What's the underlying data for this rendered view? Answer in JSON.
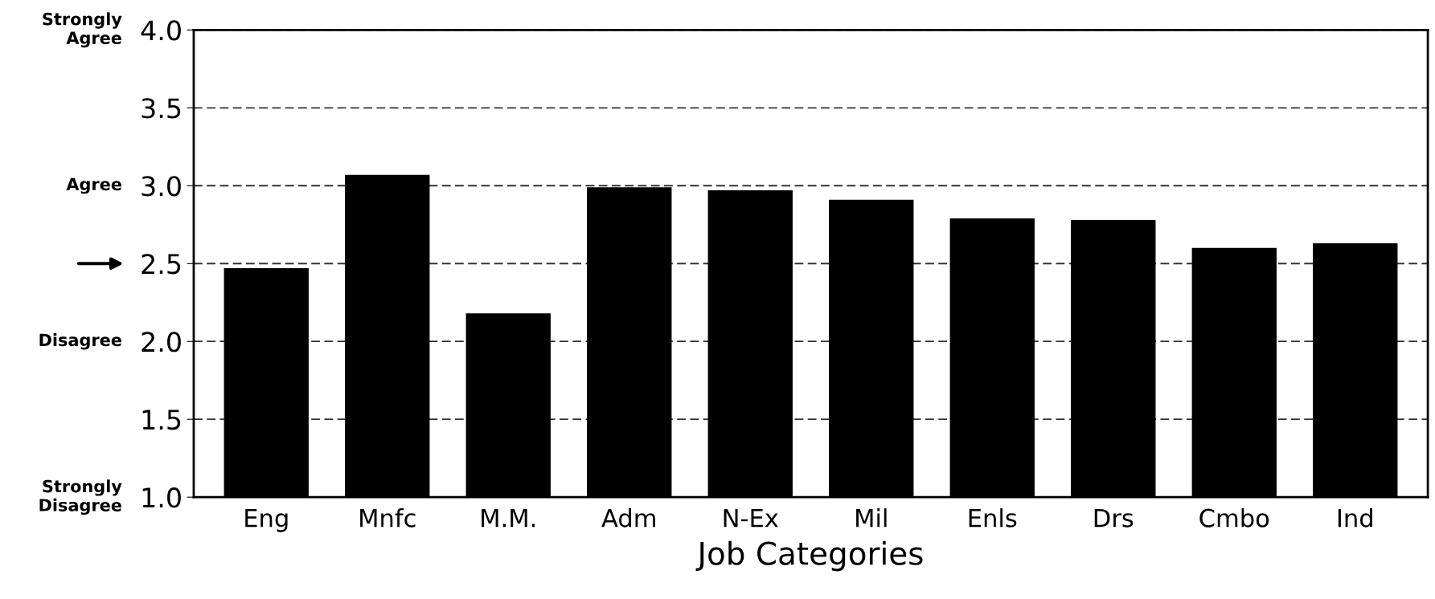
{
  "chart_data": {
    "type": "bar",
    "xlabel": "Job Categories",
    "categories": [
      "Eng",
      "Mnfc",
      "M.M.",
      "Adm",
      "N-Ex",
      "Mil",
      "Enls",
      "Drs",
      "Cmbo",
      "Ind"
    ],
    "values": [
      2.47,
      3.07,
      2.18,
      2.99,
      2.97,
      2.91,
      2.79,
      2.78,
      2.6,
      2.63
    ],
    "color": "#000000",
    "ylim": [
      1.0,
      4.0
    ],
    "yticks": [
      {
        "value": 1.0,
        "label": "1.0"
      },
      {
        "value": 1.5,
        "label": "1.5"
      },
      {
        "value": 2.0,
        "label": "2.0"
      },
      {
        "value": 2.5,
        "label": "2.5"
      },
      {
        "value": 3.0,
        "label": "3.0"
      },
      {
        "value": 3.5,
        "label": "3.5"
      },
      {
        "value": 4.0,
        "label": "4.0"
      }
    ],
    "grid": "y",
    "annotations": [
      "Strongly\nAgree",
      "Agree",
      "Disagree",
      "Strongly\nDisagree"
    ]
  }
}
